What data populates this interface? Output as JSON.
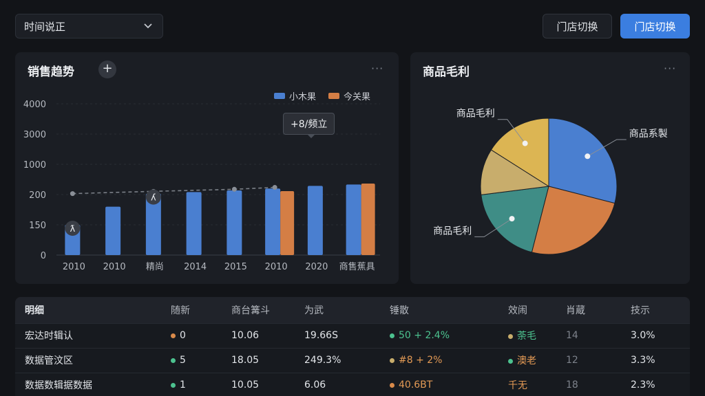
{
  "toolbar": {
    "select_value": "时间说正",
    "switch_store_label": "门店切换",
    "switch_store_primary_label": "门店切换"
  },
  "trend_panel": {
    "title": "销售趋势",
    "add_label": "+",
    "more_label": "···",
    "tooltip": "+8/频立"
  },
  "pie_panel": {
    "title": "商品毛利",
    "more_label": "···"
  },
  "chart_data": [
    {
      "type": "bar",
      "categories": [
        "2010",
        "2010",
        "精尚",
        "2014",
        "2015",
        "2010",
        "2020",
        "商售蕉具"
      ],
      "y_tick_labels": [
        "4000",
        "3000",
        "1000",
        "200",
        "150",
        "0"
      ],
      "series": [
        {
          "name": "小木果",
          "color": "#4a7fd0",
          "values": [
            150,
            180,
            225,
            265,
            310,
            360,
            430,
            465
          ]
        },
        {
          "name": "今关果",
          "color": "#d47e45",
          "values": [
            null,
            null,
            null,
            null,
            null,
            290,
            null,
            490
          ]
        }
      ],
      "trend_line": {
        "values": [
          225,
          null,
          285,
          null,
          340,
          390
        ]
      },
      "point_labels": [
        "ƛ",
        "ʎ"
      ],
      "legend": "top-right"
    },
    {
      "type": "pie",
      "slices": [
        {
          "label": "商品系製",
          "value": 29,
          "color": "#4a7fd0"
        },
        {
          "label": "",
          "value": 25,
          "color": "#d47e45"
        },
        {
          "label": "商品毛利",
          "value": 19,
          "color": "#3f8d86"
        },
        {
          "label": "",
          "value": 11,
          "color": "#c8ad6c"
        },
        {
          "label": "商品毛利",
          "value": 16,
          "color": "#dcb553"
        }
      ]
    }
  ],
  "table": {
    "headers": [
      "明细",
      "随新",
      "商台篝斗",
      "为武",
      "锤散",
      "效闹",
      "肖蔵",
      "技示"
    ],
    "rows": [
      {
        "name": "宏达时辑认",
        "c1_dot": "#d98a4a",
        "c1": "0",
        "c2": "10.06",
        "c3": "19.66S",
        "c4_dot": "#4cc28f",
        "c4": "50  + 2.4%",
        "c4_class": "green",
        "c5_dot": "#c8ad6c",
        "c5": "荼毛",
        "c5_class": "green",
        "c6": "14",
        "c7": "3.0%"
      },
      {
        "name": "数据管汶区",
        "c1_dot": "#4cc28f",
        "c1": "5",
        "c2": "18.05",
        "c3": "249.3%",
        "c4_dot": "#c8ad6c",
        "c4": "#8  + 2%",
        "c4_class": "orange",
        "c5_dot": "#4cc28f",
        "c5": "澳老",
        "c5_class": "orange",
        "c6": "12",
        "c7": "3.3%"
      },
      {
        "name": "数据数辑据数据",
        "c1_dot": "#4cc28f",
        "c1": "1",
        "c2": "10.05",
        "c3": "6.06",
        "c4_dot": "#d98a4a",
        "c4": "40.6BT",
        "c4_class": "orange",
        "c5_dot": "",
        "c5": "千无",
        "c5_class": "orange",
        "c6": "18",
        "c7": "2.3%"
      }
    ]
  }
}
